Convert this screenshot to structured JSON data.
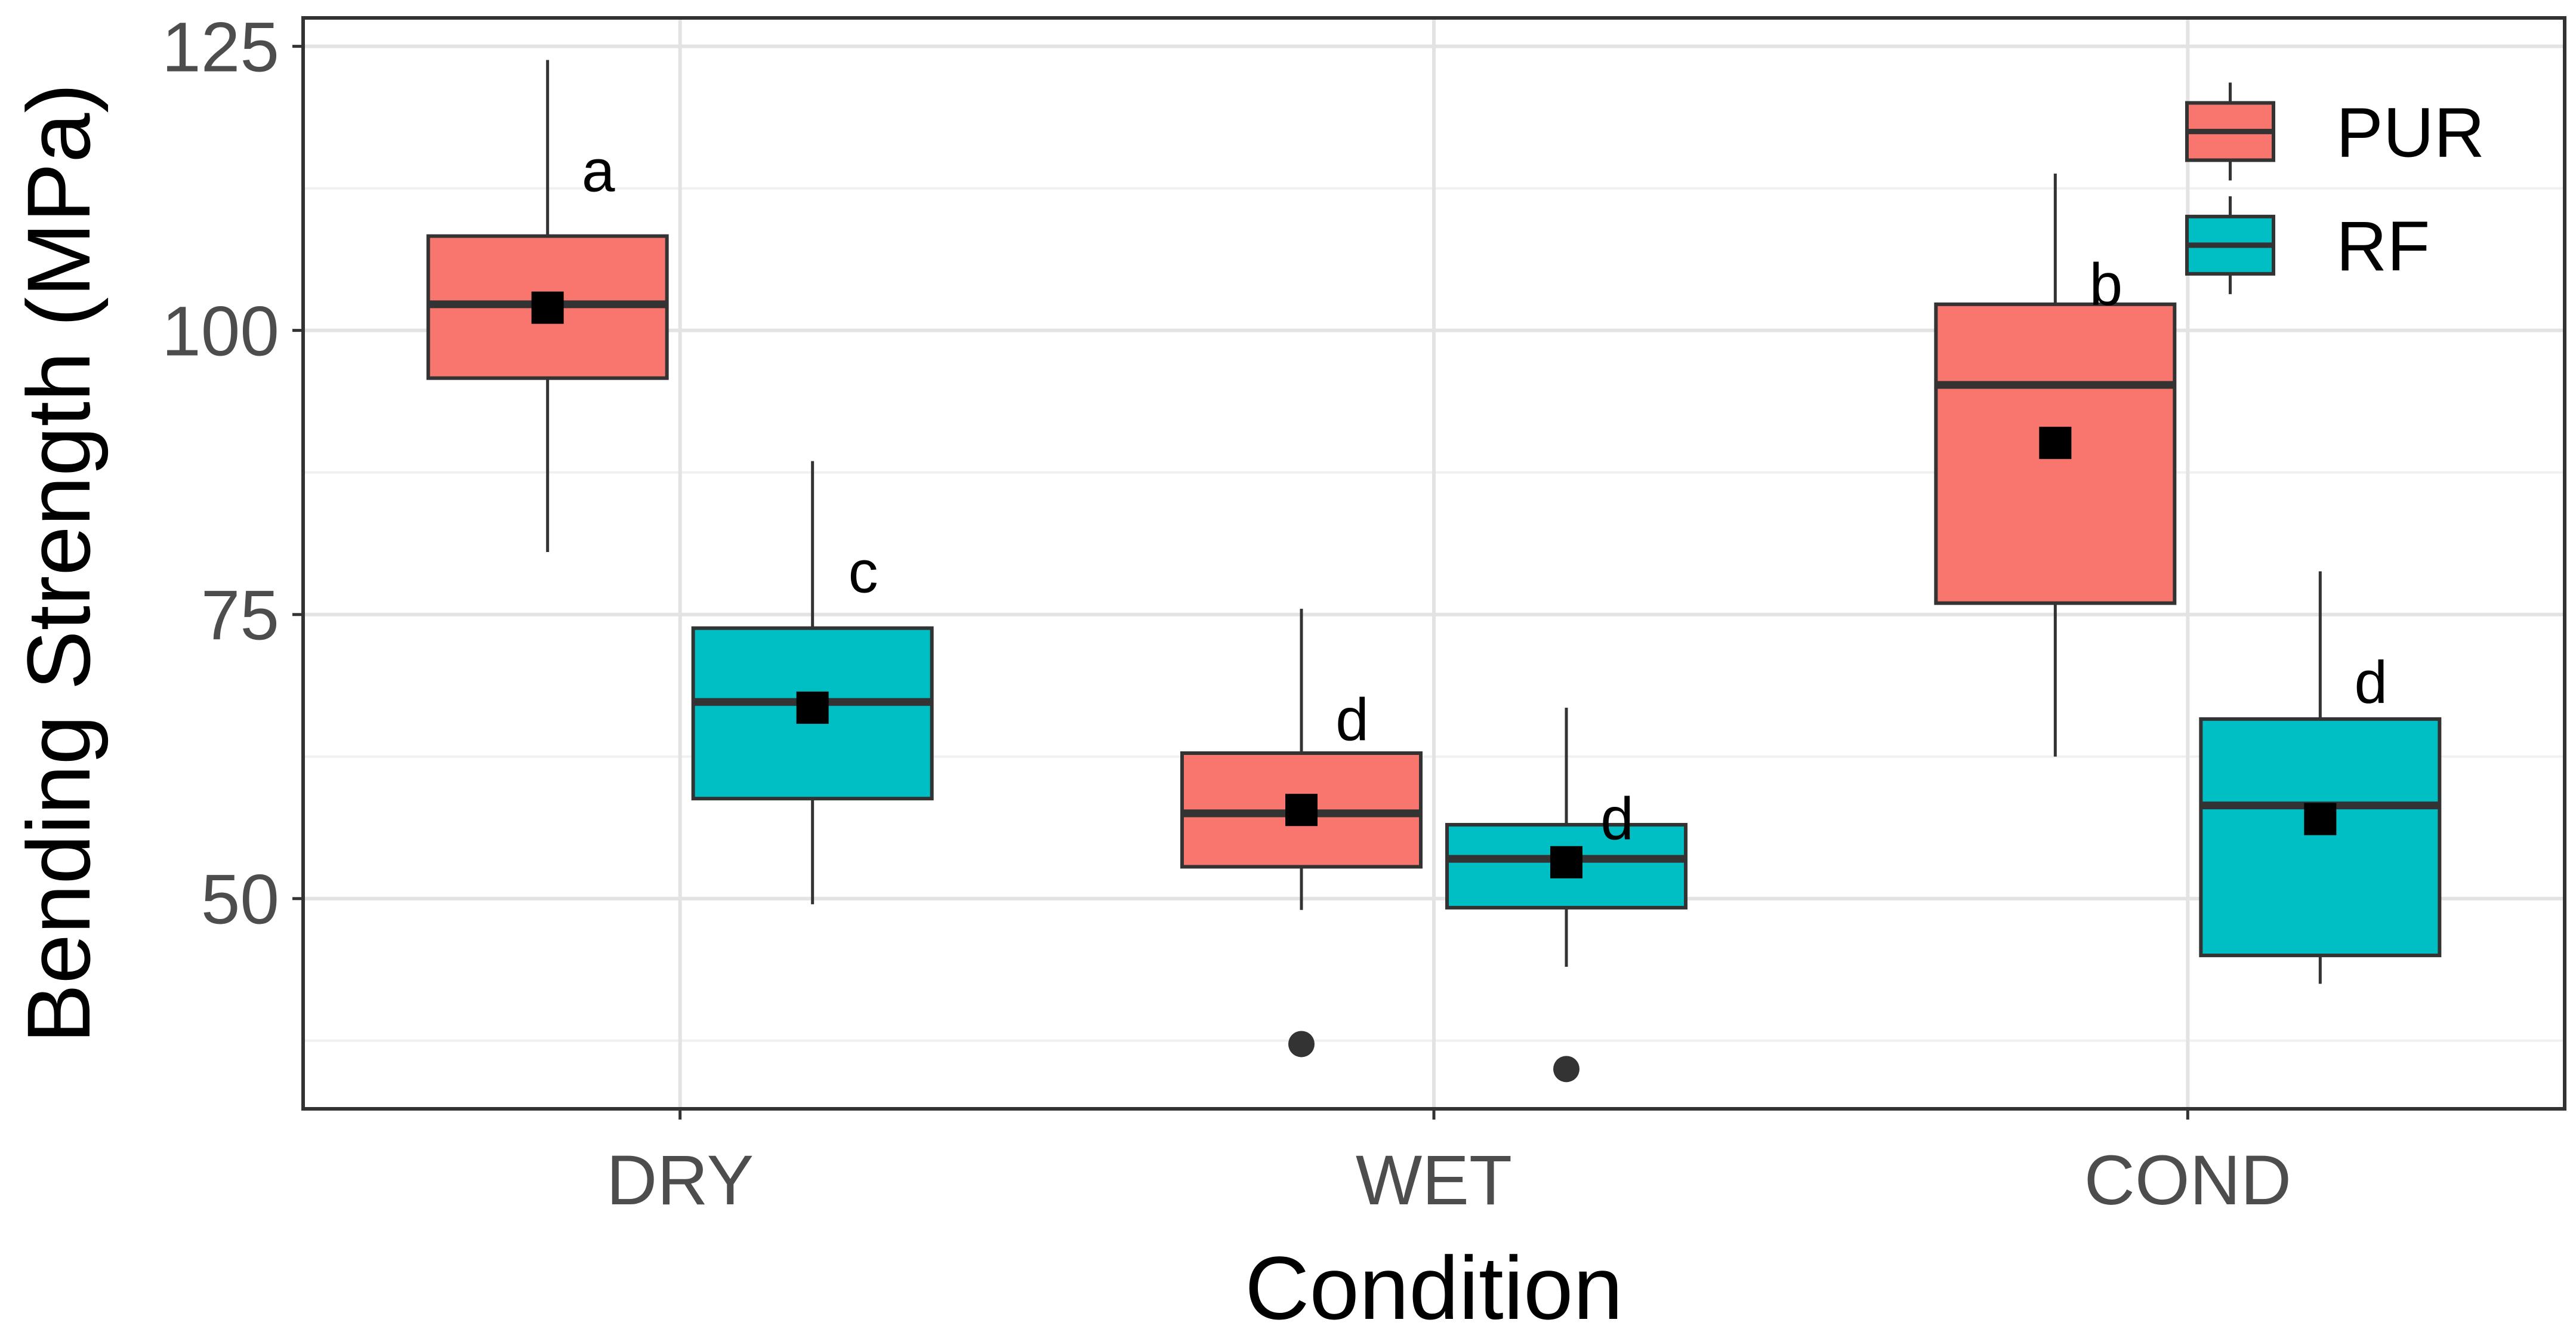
{
  "chart_data": {
    "type": "boxplot",
    "xlabel": "Condition",
    "ylabel": "Bending Strength (MPa)",
    "ylim": [
      31.5,
      127.5
    ],
    "yticks": [
      50,
      75,
      100,
      125
    ],
    "yticks_labels": [
      "50",
      "75",
      "100",
      "125"
    ],
    "minor_gridlines": [
      37.5,
      62.5,
      87.5,
      112.5
    ],
    "grid": true,
    "categories": [
      "DRY",
      "WET",
      "COND"
    ],
    "legend": {
      "position": "top-right"
    },
    "series": [
      {
        "name": "PUR",
        "color": "#F8766D",
        "boxes": [
          {
            "category": "DRY",
            "whisker_low": 80.5,
            "q1": 95.8,
            "median": 102.3,
            "q3": 108.3,
            "whisker_high": 123.8,
            "mean": 102.0,
            "outliers": [],
            "letter": "a"
          },
          {
            "category": "WET",
            "whisker_low": 49.0,
            "q1": 52.8,
            "median": 57.5,
            "q3": 62.8,
            "whisker_high": 75.5,
            "mean": 57.8,
            "outliers": [
              37.2
            ],
            "letter": "d"
          },
          {
            "category": "COND",
            "whisker_low": 62.5,
            "q1": 76.0,
            "median": 95.2,
            "q3": 102.3,
            "whisker_high": 113.8,
            "mean": 90.1,
            "outliers": [],
            "letter": "b"
          }
        ]
      },
      {
        "name": "RF",
        "color": "#00BFC4",
        "boxes": [
          {
            "category": "DRY",
            "whisker_low": 49.5,
            "q1": 58.8,
            "median": 67.3,
            "q3": 73.8,
            "whisker_high": 88.5,
            "mean": 66.8,
            "outliers": [],
            "letter": "c"
          },
          {
            "category": "WET",
            "whisker_low": 44.0,
            "q1": 49.2,
            "median": 53.5,
            "q3": 56.5,
            "whisker_high": 66.8,
            "mean": 53.2,
            "outliers": [
              35.0
            ],
            "letter": "d"
          },
          {
            "category": "COND",
            "whisker_low": 42.5,
            "q1": 45.0,
            "median": 58.2,
            "q3": 65.8,
            "whisker_high": 78.8,
            "mean": 57.0,
            "outliers": [],
            "letter": "d"
          }
        ]
      }
    ]
  }
}
